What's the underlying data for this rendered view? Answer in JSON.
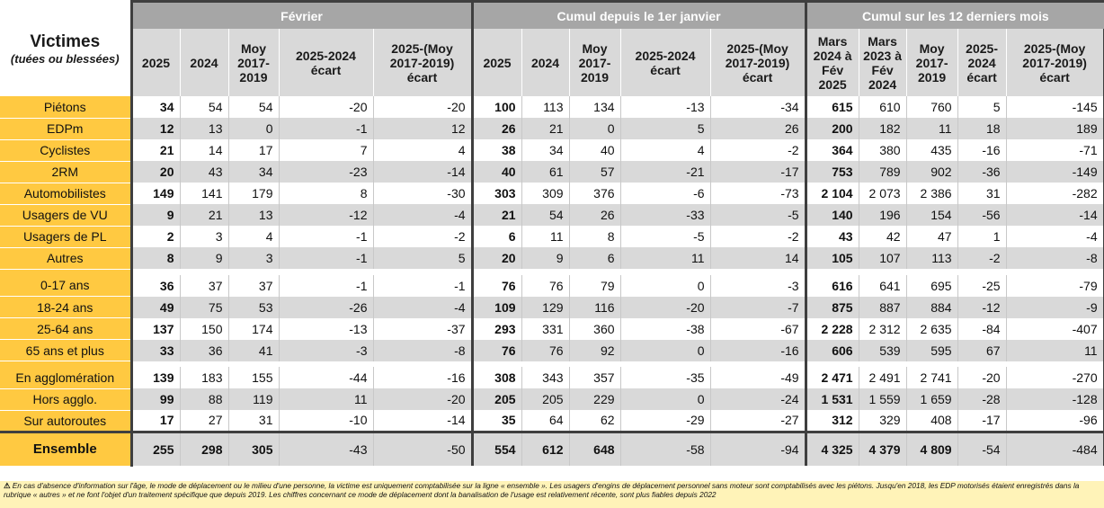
{
  "header": {
    "victimes_title": "Victimes",
    "victimes_subtitle": "(tuées ou blessées)",
    "groups": [
      "Février",
      "Cumul depuis le 1er janvier",
      "Cumul sur les 12 derniers mois"
    ],
    "sub_feb": [
      "2025",
      "2024",
      "Moy 2017-2019",
      "2025-2024\n\nécart",
      "2025-(Moy 2017-2019)\n\nécart"
    ],
    "sub_cumul": [
      "2025",
      "2024",
      "Moy 2017-2019",
      "2025-2024\n\nécart",
      "2025-(Moy 2017-2019)\n\nécart"
    ],
    "sub_12m": [
      "Mars 2024 à Fév 2025",
      "Mars 2023 à Fév 2024",
      "Moy 2017-2019",
      "2025-2024\n\nécart",
      "2025-(Moy 2017-2019)\n\nécart"
    ]
  },
  "sections": [
    [
      {
        "label": "Piétons",
        "v": [
          "34",
          "54",
          "54",
          "-20",
          "-20",
          "100",
          "113",
          "134",
          "-13",
          "-34",
          "615",
          "610",
          "760",
          "5",
          "-145"
        ]
      },
      {
        "label": "EDPm",
        "v": [
          "12",
          "13",
          "0",
          "-1",
          "12",
          "26",
          "21",
          "0",
          "5",
          "26",
          "200",
          "182",
          "11",
          "18",
          "189"
        ]
      },
      {
        "label": "Cyclistes",
        "v": [
          "21",
          "14",
          "17",
          "7",
          "4",
          "38",
          "34",
          "40",
          "4",
          "-2",
          "364",
          "380",
          "435",
          "-16",
          "-71"
        ]
      },
      {
        "label": "2RM",
        "v": [
          "20",
          "43",
          "34",
          "-23",
          "-14",
          "40",
          "61",
          "57",
          "-21",
          "-17",
          "753",
          "789",
          "902",
          "-36",
          "-149"
        ]
      },
      {
        "label": "Automobilistes",
        "v": [
          "149",
          "141",
          "179",
          "8",
          "-30",
          "303",
          "309",
          "376",
          "-6",
          "-73",
          "2 104",
          "2 073",
          "2 386",
          "31",
          "-282"
        ]
      },
      {
        "label": "Usagers de VU",
        "v": [
          "9",
          "21",
          "13",
          "-12",
          "-4",
          "21",
          "54",
          "26",
          "-33",
          "-5",
          "140",
          "196",
          "154",
          "-56",
          "-14"
        ]
      },
      {
        "label": "Usagers de PL",
        "v": [
          "2",
          "3",
          "4",
          "-1",
          "-2",
          "6",
          "11",
          "8",
          "-5",
          "-2",
          "43",
          "42",
          "47",
          "1",
          "-4"
        ]
      },
      {
        "label": "Autres",
        "v": [
          "8",
          "9",
          "3",
          "-1",
          "5",
          "20",
          "9",
          "6",
          "11",
          "14",
          "105",
          "107",
          "113",
          "-2",
          "-8"
        ]
      }
    ],
    [
      {
        "label": "0-17 ans",
        "v": [
          "36",
          "37",
          "37",
          "-1",
          "-1",
          "76",
          "76",
          "79",
          "0",
          "-3",
          "616",
          "641",
          "695",
          "-25",
          "-79"
        ]
      },
      {
        "label": "18-24 ans",
        "v": [
          "49",
          "75",
          "53",
          "-26",
          "-4",
          "109",
          "129",
          "116",
          "-20",
          "-7",
          "875",
          "887",
          "884",
          "-12",
          "-9"
        ]
      },
      {
        "label": "25-64 ans",
        "v": [
          "137",
          "150",
          "174",
          "-13",
          "-37",
          "293",
          "331",
          "360",
          "-38",
          "-67",
          "2 228",
          "2 312",
          "2 635",
          "-84",
          "-407"
        ]
      },
      {
        "label": "65 ans et plus",
        "v": [
          "33",
          "36",
          "41",
          "-3",
          "-8",
          "76",
          "76",
          "92",
          "0",
          "-16",
          "606",
          "539",
          "595",
          "67",
          "11"
        ]
      }
    ],
    [
      {
        "label": "En agglomération",
        "v": [
          "139",
          "183",
          "155",
          "-44",
          "-16",
          "308",
          "343",
          "357",
          "-35",
          "-49",
          "2 471",
          "2 491",
          "2 741",
          "-20",
          "-270"
        ]
      },
      {
        "label": "Hors agglo.",
        "v": [
          "99",
          "88",
          "119",
          "11",
          "-20",
          "205",
          "205",
          "229",
          "0",
          "-24",
          "1 531",
          "1 559",
          "1 659",
          "-28",
          "-128"
        ]
      },
      {
        "label": "Sur autoroutes",
        "v": [
          "17",
          "27",
          "31",
          "-10",
          "-14",
          "35",
          "64",
          "62",
          "-29",
          "-27",
          "312",
          "329",
          "408",
          "-17",
          "-96"
        ]
      }
    ]
  ],
  "total": {
    "label": "Ensemble",
    "v": [
      "255",
      "298",
      "305",
      "-43",
      "-50",
      "554",
      "612",
      "648",
      "-58",
      "-94",
      "4 325",
      "4 379",
      "4 809",
      "-54",
      "-484"
    ]
  },
  "footnote": {
    "symbol": "⚠",
    "text": "En cas d'absence d'information sur l'âge, le mode de déplacement ou le milieu d'une personne, la victime est uniquement comptabilisée sur la ligne « ensemble ». Les usagers d'engins de déplacement personnel sans moteur sont comptabilisés avec les piétons. Jusqu'en 2018, les EDP motorisés étaient enregistrés dans la rubrique « autres » et ne font l'objet d'un traitement spécifique que depuis 2019. Les chiffres concernant ce mode de déplacement dont la banalisation de l'usage est relativement récente, sont plus fiables depuis 2022"
  }
}
